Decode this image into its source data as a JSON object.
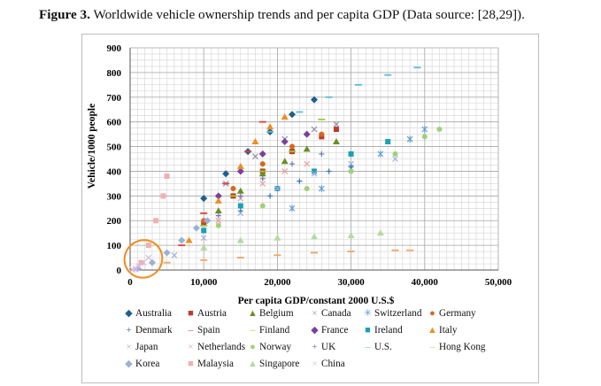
{
  "caption": {
    "label": "Figure 3.",
    "text": " Worldwide vehicle ownership trends and per capita GDP (Data source: [28,29])."
  },
  "chart_data": {
    "type": "scatter",
    "xlabel": "Per capita GDP/constant 2000 U.S.$",
    "ylabel": "Vehicle/1000 people",
    "xlim": [
      0,
      50000
    ],
    "ylim": [
      0,
      900
    ],
    "x_ticks": [
      0,
      10000,
      20000,
      30000,
      40000,
      50000
    ],
    "x_tick_labels": [
      "0",
      "10,000",
      "20,000",
      "30,000",
      "40,000",
      "50,000"
    ],
    "y_ticks": [
      0,
      100,
      200,
      300,
      400,
      500,
      600,
      700,
      800,
      900
    ],
    "y_tick_labels": [
      "0",
      "100",
      "200",
      "300",
      "400",
      "500",
      "600",
      "700",
      "800",
      "900"
    ],
    "grid": true,
    "legend_position": "bottom",
    "series": [
      {
        "name": "Australia",
        "color": "#1f5f8b",
        "marker": "diamond",
        "x": [
          10000,
          13000,
          16000,
          19000,
          22000,
          25000
        ],
        "y": [
          290,
          390,
          480,
          560,
          630,
          690
        ]
      },
      {
        "name": "Austria",
        "color": "#c0392b",
        "marker": "square",
        "x": [
          10000,
          14000,
          18000,
          22000,
          26000,
          28000
        ],
        "y": [
          190,
          300,
          400,
          480,
          540,
          570
        ]
      },
      {
        "name": "Belgium",
        "color": "#6b8e23",
        "marker": "triangle",
        "x": [
          12000,
          15000,
          18000,
          21000,
          24000,
          28000
        ],
        "y": [
          240,
          320,
          390,
          440,
          490,
          520
        ]
      },
      {
        "name": "Canada",
        "color": "#8f8fb0",
        "marker": "x",
        "x": [
          13000,
          17000,
          21000,
          25000,
          28000
        ],
        "y": [
          350,
          460,
          530,
          570,
          590
        ]
      },
      {
        "name": "Switzerland",
        "color": "#5b9bd5",
        "marker": "star",
        "x": [
          22000,
          26000,
          30000,
          34000,
          38000,
          40000
        ],
        "y": [
          250,
          330,
          410,
          470,
          530,
          570
        ]
      },
      {
        "name": "Germany",
        "color": "#d2691e",
        "marker": "circle",
        "x": [
          10000,
          14000,
          18000,
          22000,
          26000
        ],
        "y": [
          200,
          330,
          430,
          500,
          550
        ]
      },
      {
        "name": "Denmark",
        "color": "#2e75b6",
        "marker": "plus",
        "x": [
          15000,
          19000,
          23000,
          27000,
          30000
        ],
        "y": [
          240,
          300,
          360,
          400,
          420
        ]
      },
      {
        "name": "Spain",
        "color": "#e0403a",
        "marker": "dash",
        "x": [
          7000,
          10000,
          13000,
          16000,
          18000
        ],
        "y": [
          100,
          230,
          350,
          480,
          600
        ]
      },
      {
        "name": "Finland",
        "color": "#9acd32",
        "marker": "dash",
        "x": [
          10000,
          14000,
          18000,
          22000,
          26000
        ],
        "y": [
          180,
          300,
          400,
          480,
          610
        ]
      },
      {
        "name": "France",
        "color": "#7b3f9e",
        "marker": "diamond",
        "x": [
          12000,
          15000,
          18000,
          21000,
          24000
        ],
        "y": [
          300,
          400,
          470,
          520,
          550
        ]
      },
      {
        "name": "Ireland",
        "color": "#1aa0b8",
        "marker": "square",
        "x": [
          10000,
          15000,
          20000,
          25000,
          30000,
          35000
        ],
        "y": [
          160,
          260,
          330,
          400,
          470,
          520
        ]
      },
      {
        "name": "Italy",
        "color": "#f08c20",
        "marker": "triangle",
        "x": [
          8000,
          12000,
          15000,
          17000,
          19000,
          21000
        ],
        "y": [
          120,
          280,
          420,
          520,
          580,
          620
        ]
      },
      {
        "name": "Japan",
        "color": "#9fb0d8",
        "marker": "x",
        "x": [
          6000,
          10000,
          15000,
          20000,
          25000,
          30000,
          36000
        ],
        "y": [
          60,
          130,
          230,
          330,
          390,
          430,
          450
        ]
      },
      {
        "name": "Netherlands",
        "color": "#e8a0a0",
        "marker": "x",
        "x": [
          12000,
          15000,
          18000,
          21000,
          24000
        ],
        "y": [
          200,
          290,
          350,
          400,
          430
        ]
      },
      {
        "name": "Norway",
        "color": "#9fd07a",
        "marker": "circle",
        "x": [
          12000,
          18000,
          24000,
          30000,
          36000,
          40000,
          42000
        ],
        "y": [
          180,
          260,
          330,
          400,
          470,
          540,
          570
        ]
      },
      {
        "name": "UK",
        "color": "#6f72b8",
        "marker": "plus",
        "x": [
          12000,
          15000,
          18000,
          22000,
          26000
        ],
        "y": [
          220,
          300,
          370,
          430,
          470
        ]
      },
      {
        "name": "U.S.",
        "color": "#5bbcd6",
        "marker": "dash",
        "x": [
          19000,
          23000,
          27000,
          31000,
          35000,
          39000
        ],
        "y": [
          560,
          640,
          700,
          750,
          790,
          820
        ]
      },
      {
        "name": "Hong Kong",
        "color": "#f4a460",
        "marker": "dash",
        "x": [
          5000,
          10000,
          15000,
          20000,
          25000,
          30000,
          36000,
          38000
        ],
        "y": [
          30,
          40,
          50,
          60,
          70,
          75,
          80,
          80
        ]
      },
      {
        "name": "Korea",
        "color": "#9bb1d4",
        "marker": "diamond",
        "x": [
          1000,
          3000,
          5000,
          7000,
          9000,
          10500
        ],
        "y": [
          5,
          30,
          70,
          120,
          170,
          200
        ]
      },
      {
        "name": "Malaysia",
        "color": "#f0b0b0",
        "marker": "square",
        "x": [
          1500,
          2500,
          3500,
          4500,
          5000
        ],
        "y": [
          30,
          100,
          200,
          300,
          380
        ]
      },
      {
        "name": "Singapore",
        "color": "#b5d8a0",
        "marker": "triangle",
        "x": [
          10000,
          15000,
          20000,
          25000,
          30000,
          34000
        ],
        "y": [
          90,
          120,
          130,
          135,
          140,
          150
        ]
      },
      {
        "name": "China",
        "color": "#d9b8e0",
        "marker": "x",
        "x": [
          300,
          700,
          1200,
          1800,
          2500
        ],
        "y": [
          2,
          5,
          15,
          30,
          50
        ]
      }
    ],
    "annotations": [
      {
        "type": "ellipse",
        "color": "#f08c20",
        "center": [
          1800,
          45
        ],
        "radius": [
          2600,
          75
        ],
        "angle": -40
      }
    ]
  },
  "legend_rows": [
    [
      "Australia",
      "Austria",
      "Belgium",
      "Canada",
      "Switzerland",
      "Germany"
    ],
    [
      "Denmark",
      "Spain",
      "Finland",
      "France",
      "Ireland",
      "Italy"
    ],
    [
      "Japan",
      "Netherlands",
      "Norway",
      "UK",
      "U.S.",
      "Hong Kong"
    ],
    [
      "Korea",
      "Malaysia",
      "Singapore",
      "China"
    ]
  ]
}
